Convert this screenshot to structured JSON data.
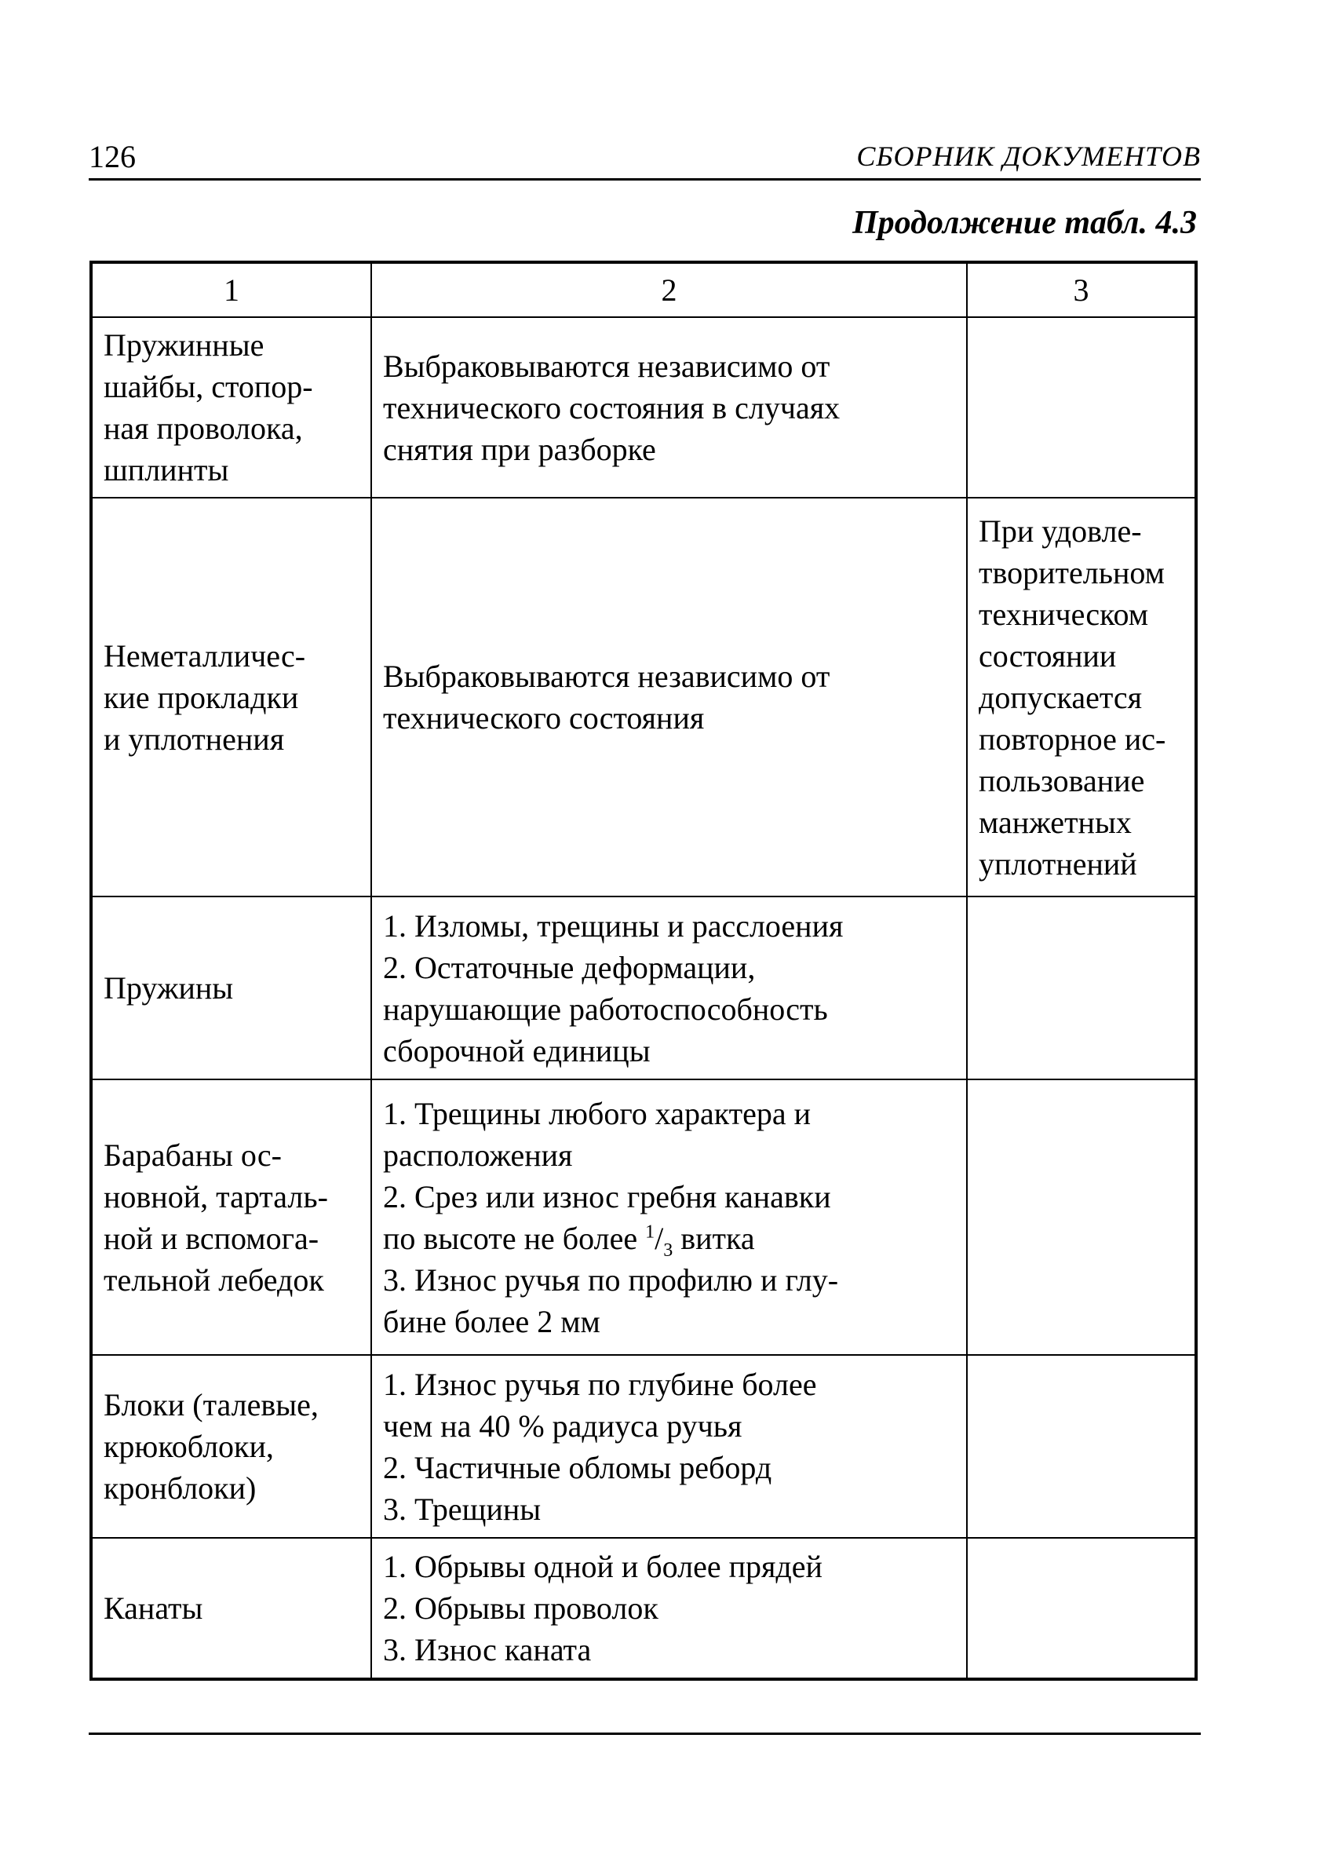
{
  "header": {
    "page_number": "126",
    "running_title": "СБОРНИК ДОКУМЕНТОВ"
  },
  "caption": "Продолжение табл. 4.3",
  "table": {
    "column_numbers": [
      "1",
      "2",
      "3"
    ],
    "rows": [
      {
        "item": "Пружинные\nшайбы, стопор-\nная проволока,\nшплинты",
        "criteria": "Выбраковываются независимо от\nтехнического состояния в случаях\nснятия при разборке",
        "note": ""
      },
      {
        "item": "Неметалличес-\nкие прокладки\nи уплотнения",
        "criteria": "Выбраковываются независимо от\nтехнического состояния",
        "note": "При удовле-\nтворительном\nтехническом\nсостоянии\nдопускается\nповторное ис-\nпользование\nманжетных\nуплотнений"
      },
      {
        "item": "Пружины",
        "criteria": "1. Изломы, трещины и расслоения\n2. Остаточные деформации,\nнарушающие работоспособность\nсборочной единицы",
        "note": ""
      },
      {
        "item": "Барабаны ос-\nновной, тарталь-\nной и вспомога-\nтельной лебедок",
        "criteria_parts": {
          "before": "1. Трещины любого характера и\nрасположения\n2. Срез или износ гребня канавки\nпо высоте не более ",
          "frac_num": "1",
          "frac_den": "3",
          "after": " витка\n3. Износ ручья по профилю и глу-\nбине более 2 мм"
        },
        "note": ""
      },
      {
        "item": "Блоки (талевые,\nкрюкоблоки,\nкронблоки)",
        "criteria": "1. Износ ручья по глубине более\nчем на 40 % радиуса ручья\n2. Частичные обломы реборд\n3. Трещины",
        "note": ""
      },
      {
        "item": "Канаты",
        "criteria": "1. Обрывы одной и более прядей\n2. Обрывы проволок\n3. Износ каната",
        "note": ""
      }
    ]
  }
}
